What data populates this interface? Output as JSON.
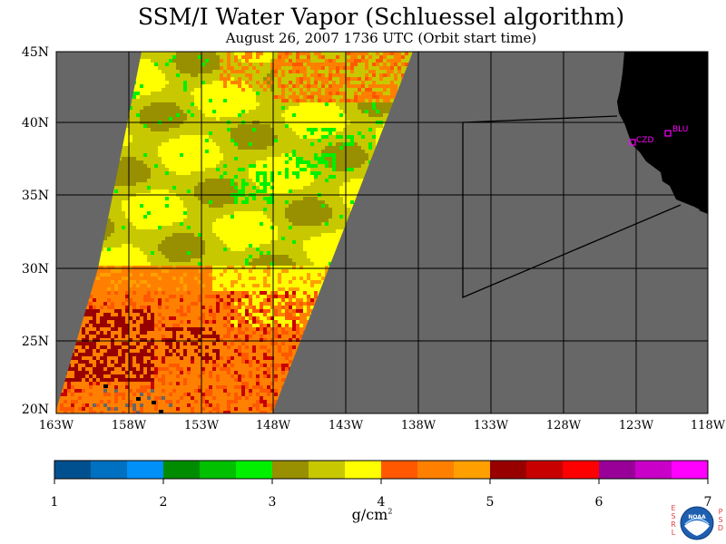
{
  "title": "SSM/I Water Vapor (Schluessel algorithm)",
  "subtitle": "August 26, 2007  1736 UTC  (Orbit start time)",
  "map": {
    "lat_labels": [
      "45N",
      "40N",
      "35N",
      "30N",
      "25N",
      "20N"
    ],
    "lon_labels": [
      "163W",
      "158W",
      "153W",
      "148W",
      "143W",
      "138W",
      "133W",
      "128W",
      "123W",
      "118W"
    ],
    "stations": [
      {
        "name": "CZD"
      },
      {
        "name": "BLU"
      }
    ],
    "colors": {
      "no_data": "#676767",
      "land": "#000000",
      "grid": "#000000",
      "station": "#ff00ff"
    }
  },
  "colorbar": {
    "ticks": [
      "1",
      "2",
      "3",
      "4",
      "5",
      "6",
      "7"
    ],
    "unit": "g/cm",
    "unit_sup": "2",
    "colors": [
      "#005090",
      "#0070c0",
      "#0090f8",
      "#008c00",
      "#00c000",
      "#00f000",
      "#989000",
      "#c8c800",
      "#ffff00",
      "#ff5800",
      "#ff8000",
      "#ffa000",
      "#980000",
      "#c80000",
      "#ff0000",
      "#980098",
      "#c800c8",
      "#ff00ff"
    ]
  },
  "branding": {
    "left": [
      "E",
      "S",
      "R",
      "L"
    ],
    "right": [
      "P",
      "S",
      "D"
    ],
    "logo_text": "NOAA"
  }
}
